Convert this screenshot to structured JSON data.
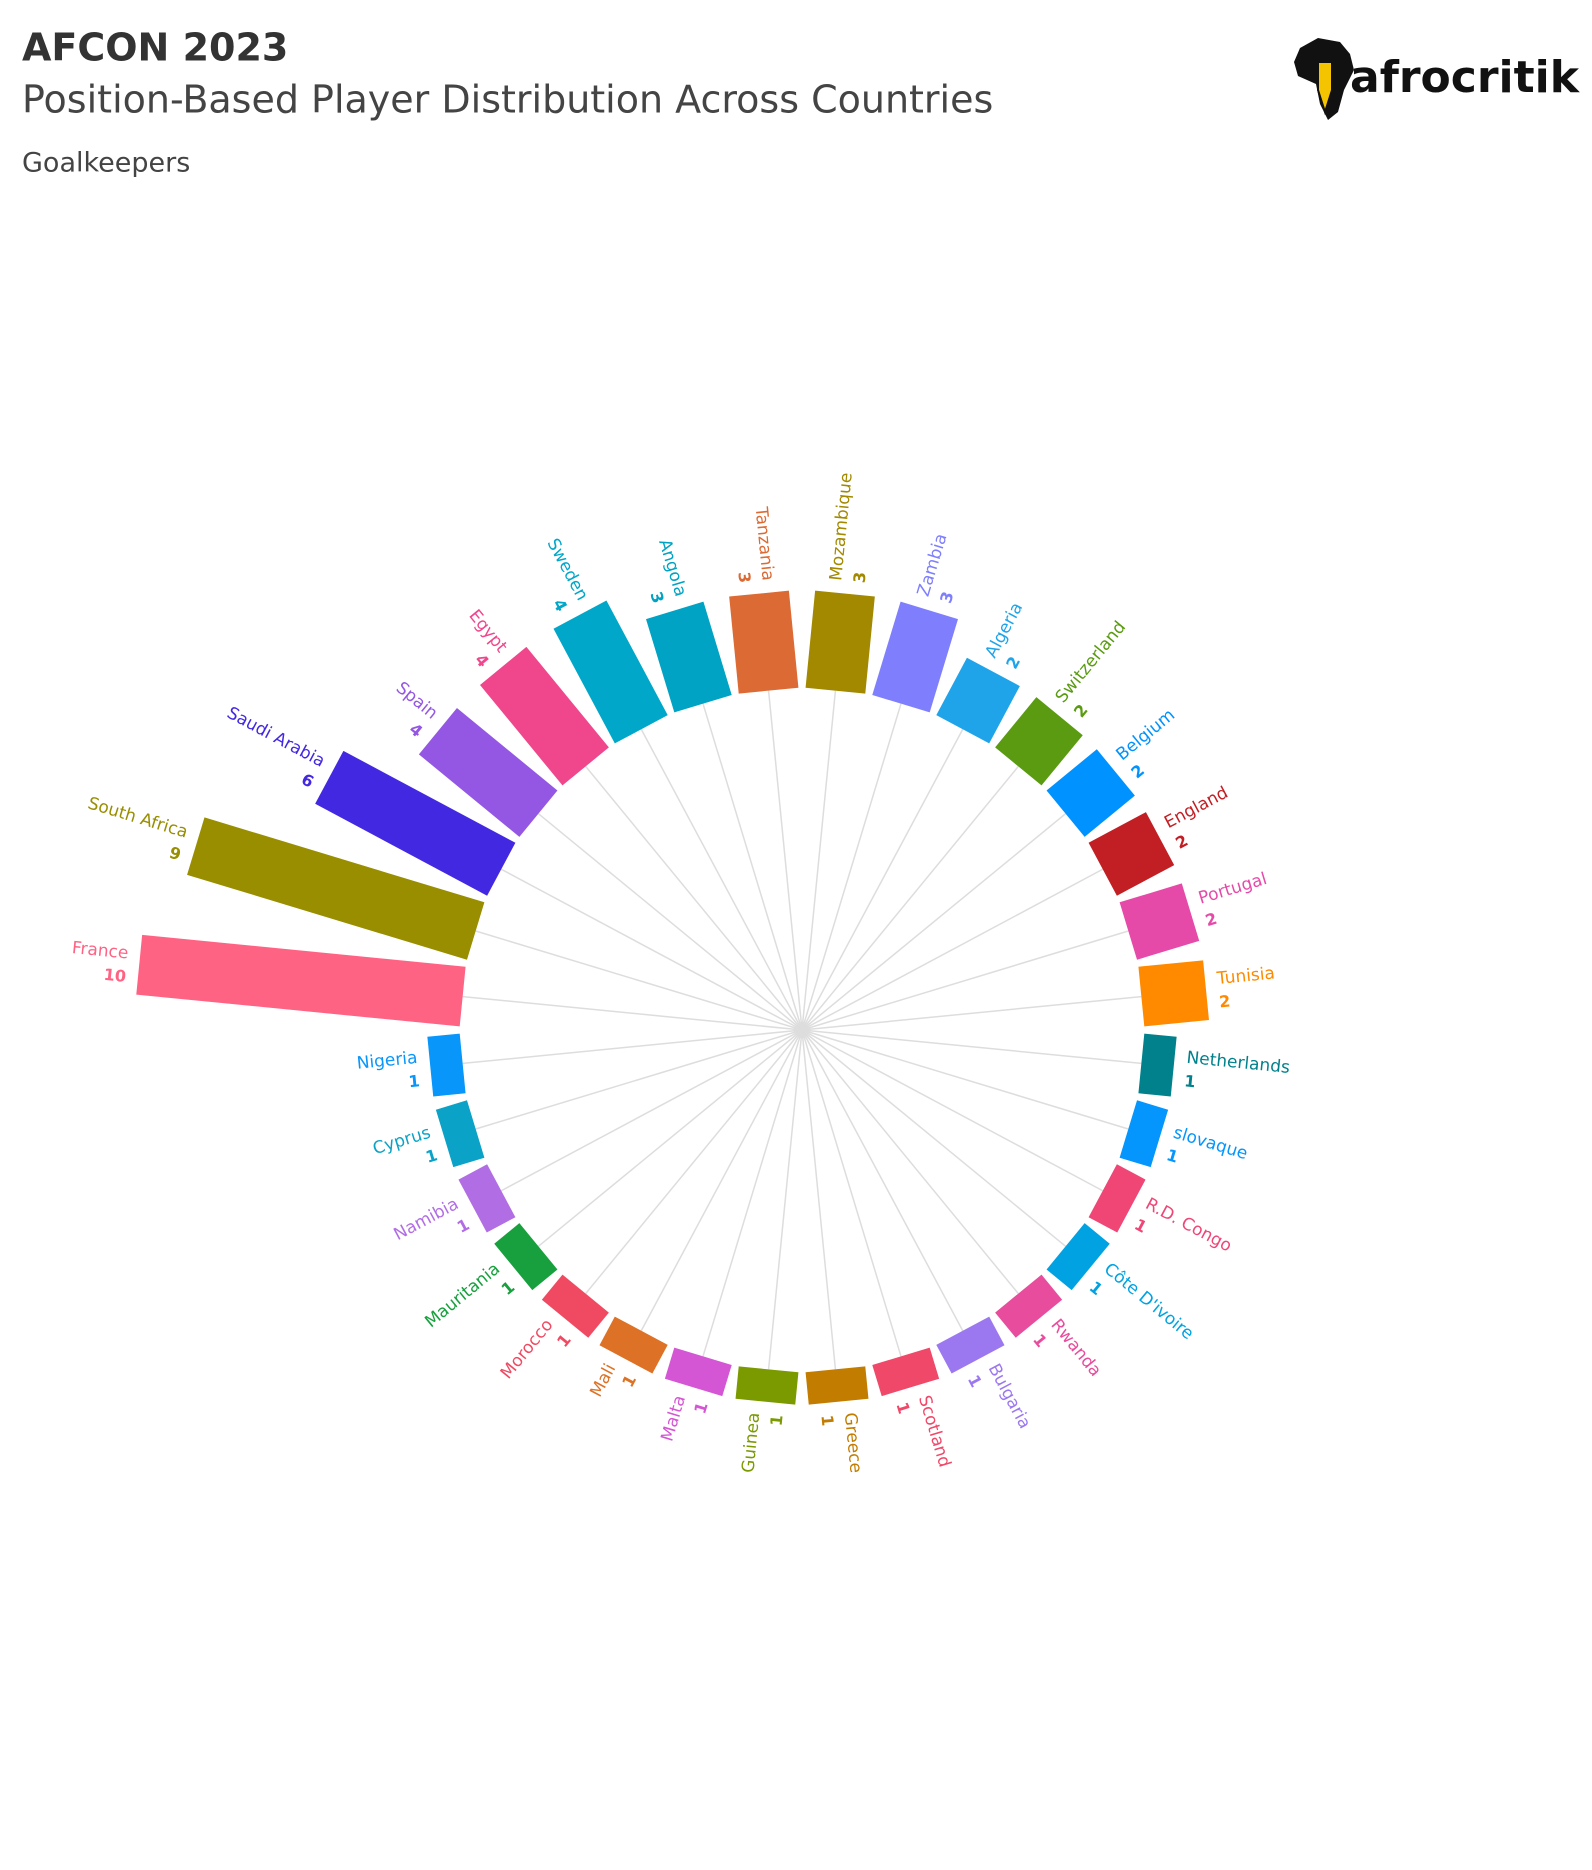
{
  "logo": "afrocritik",
  "chart_data": {
    "type": "radial_bar",
    "title": "AFCON 2023",
    "subtitle": "Position-Based Player Distribution Across Countries",
    "caption": "Goalkeepers",
    "categories": [
      "France",
      "South Africa",
      "Saudi Arabia",
      "Spain",
      "Egypt",
      "Sweden",
      "Angola",
      "Tanzania",
      "Mozambique",
      "Zambia",
      "Algeria",
      "Switzerland",
      "Belgium",
      "England",
      "Portugal",
      "Tunisia",
      "Netherlands",
      "slovaque",
      "R.D. Congo",
      "Côte D'ivoire",
      "Rwanda",
      "Bulgaria",
      "Scotland",
      "Greece",
      "Guinea",
      "Malta",
      "Mali",
      "Morocco",
      "Mauritania",
      "Namibia",
      "Cyprus",
      "Nigeria"
    ],
    "values": [
      10,
      9,
      6,
      4,
      4,
      4,
      3,
      3,
      3,
      3,
      2,
      2,
      2,
      2,
      2,
      2,
      1,
      1,
      1,
      1,
      1,
      1,
      1,
      1,
      1,
      1,
      1,
      1,
      1,
      1,
      1,
      1
    ],
    "colors": [
      "#ff6384",
      "#988e00",
      "#4328e2",
      "#9457e3",
      "#f0468c",
      "#00a7c9",
      "#00a3c3",
      "#dc6a34",
      "#a28900",
      "#7f7ffd",
      "#1fa4ea",
      "#5a9b11",
      "#0092ff",
      "#c21f24",
      "#e64aa8",
      "#ff8a00",
      "#00818c",
      "#0496fd",
      "#ef4676",
      "#00a2e1",
      "#e84c9c",
      "#9c78f0",
      "#ef4868",
      "#c27c00",
      "#7a9a00",
      "#d456d4",
      "#dd7226",
      "#ef4a62",
      "#17a03d",
      "#b16ee4",
      "#0aa2c6",
      "#0896fa"
    ]
  }
}
